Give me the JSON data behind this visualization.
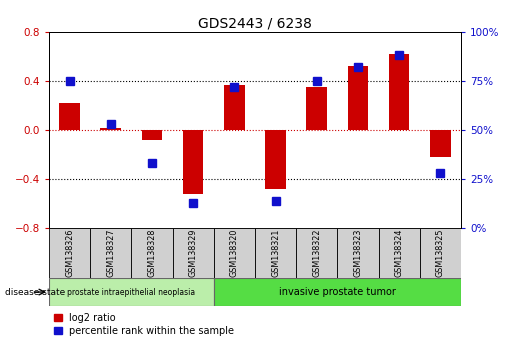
{
  "title": "GDS2443 / 6238",
  "samples": [
    "GSM138326",
    "GSM138327",
    "GSM138328",
    "GSM138329",
    "GSM138320",
    "GSM138321",
    "GSM138322",
    "GSM138323",
    "GSM138324",
    "GSM138325"
  ],
  "log2_ratio": [
    0.22,
    0.02,
    -0.08,
    -0.52,
    0.37,
    -0.48,
    0.35,
    0.52,
    0.62,
    -0.22
  ],
  "percentile_rank": [
    75,
    53,
    33,
    13,
    72,
    14,
    75,
    82,
    88,
    28
  ],
  "ylim_left": [
    -0.8,
    0.8
  ],
  "ylim_right": [
    0,
    100
  ],
  "yticks_left": [
    -0.8,
    -0.4,
    0.0,
    0.4,
    0.8
  ],
  "yticks_right": [
    0,
    25,
    50,
    75,
    100
  ],
  "bar_color_red": "#cc0000",
  "bar_color_blue": "#1010cc",
  "group1_label": "prostate intraepithelial neoplasia",
  "group2_label": "invasive prostate tumor",
  "group1_count": 4,
  "group2_count": 6,
  "disease_state_label": "disease state",
  "legend_red": "log2 ratio",
  "legend_blue": "percentile rank within the sample",
  "group1_bg": "#bbeeaa",
  "group2_bg": "#55dd44",
  "sample_bg": "#d0d0d0",
  "bar_width": 0.5,
  "blue_marker_size": 6
}
